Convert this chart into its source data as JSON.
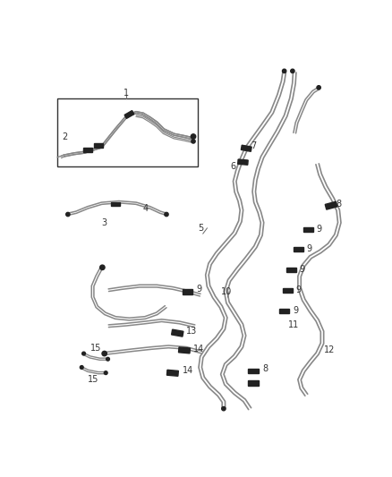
{
  "background_color": "#ffffff",
  "line_color": "#888888",
  "line_width": 1.3,
  "part_color": "#222222",
  "figsize": [
    4.38,
    5.33
  ],
  "dpi": 100
}
